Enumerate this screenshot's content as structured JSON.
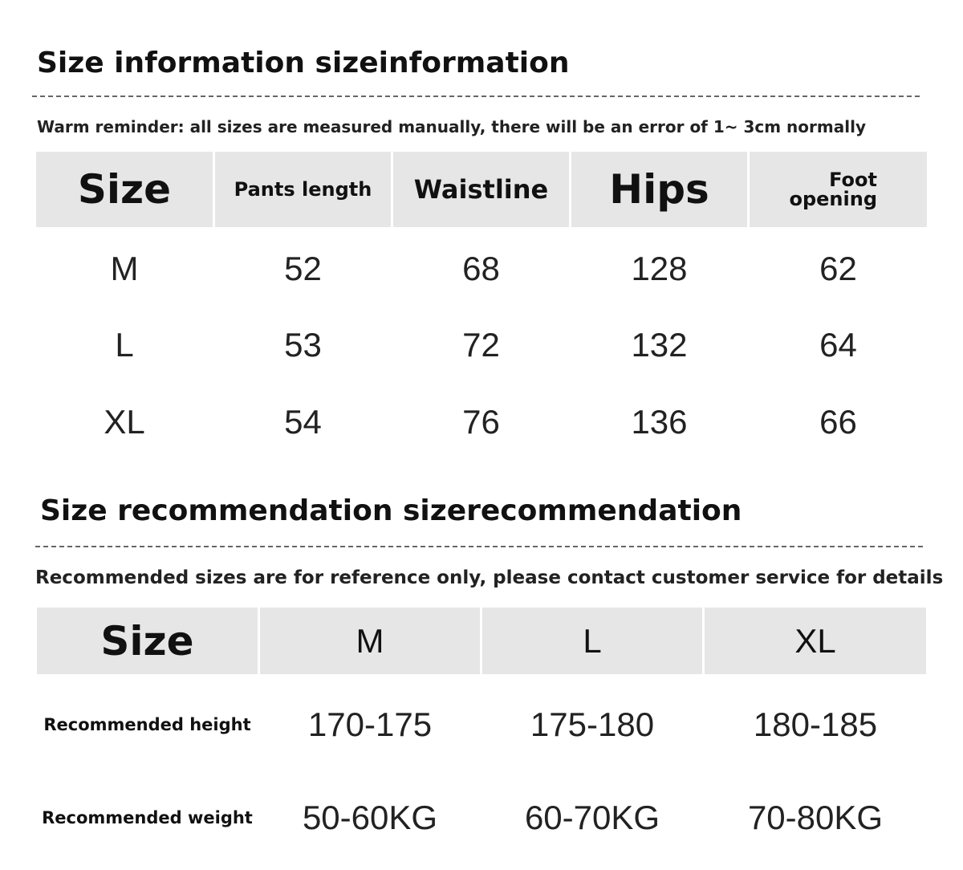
{
  "size_information": {
    "title": "Size information sizeinformation",
    "note": "Warm reminder: all sizes are measured manually, there will be an error of 1~ 3cm normally",
    "table": {
      "header": [
        "Size",
        "Pants length",
        "Waistline",
        "Hips",
        "Foot opening"
      ],
      "rows": [
        [
          "M",
          52,
          68,
          128,
          62
        ],
        [
          "L",
          53,
          72,
          132,
          64
        ],
        [
          "XL",
          54,
          76,
          136,
          66
        ]
      ]
    }
  },
  "size_recommendation": {
    "title": "Size recommendation sizerecommendation",
    "note": "Recommended sizes are for reference only, please contact customer service for details",
    "table": {
      "header": [
        "Size",
        "M",
        "L",
        "XL"
      ],
      "rows": [
        [
          "Recommended height",
          "170-175",
          "175-180",
          "180-185"
        ],
        [
          "Recommended weight",
          "50-60KG",
          "60-70KG",
          "70-80KG"
        ]
      ]
    }
  }
}
